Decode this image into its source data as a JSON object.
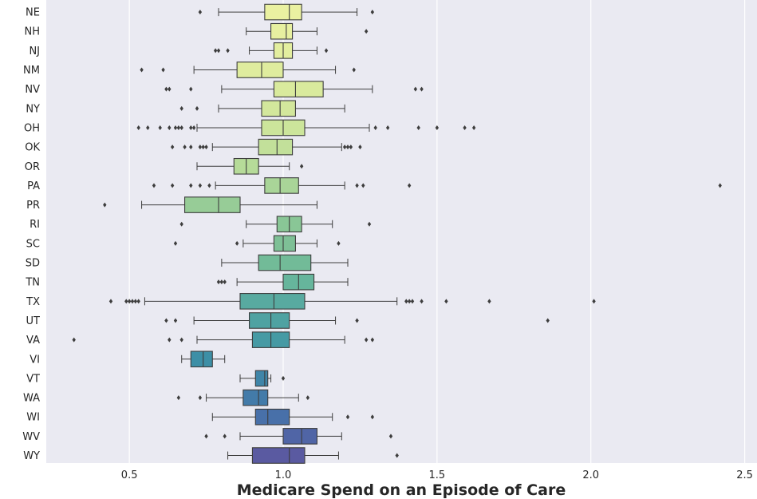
{
  "chart_data": {
    "type": "boxplot",
    "orientation": "horizontal",
    "xlabel": "Medicare Spend on an Episode of Care",
    "ylabel": "",
    "xlim": [
      0.23,
      2.54
    ],
    "xticks": [
      0.5,
      1.0,
      1.5,
      2.0,
      2.5
    ],
    "xtick_labels": [
      "0.5",
      "1.0",
      "1.5",
      "2.0",
      "2.5"
    ],
    "grid": true,
    "background": "#eaeaf2",
    "palette": "viridis-yellow-to-purple",
    "categories": [
      "NE",
      "NH",
      "NJ",
      "NM",
      "NV",
      "NY",
      "OH",
      "OK",
      "OR",
      "PA",
      "PR",
      "RI",
      "SC",
      "SD",
      "TN",
      "TX",
      "UT",
      "VA",
      "VI",
      "VT",
      "WA",
      "WI",
      "WV",
      "WY"
    ],
    "boxes": [
      {
        "state": "NE",
        "whislo": 0.79,
        "q1": 0.94,
        "med": 1.02,
        "q3": 1.06,
        "whishi": 1.24,
        "fliers": [
          0.73,
          1.29
        ],
        "color": "#eaf1a1"
      },
      {
        "state": "NH",
        "whislo": 0.88,
        "q1": 0.96,
        "med": 1.01,
        "q3": 1.03,
        "whishi": 1.11,
        "fliers": [
          1.27
        ],
        "color": "#e7f0a0"
      },
      {
        "state": "NJ",
        "whislo": 0.89,
        "q1": 0.97,
        "med": 1.0,
        "q3": 1.03,
        "whishi": 1.11,
        "fliers": [
          0.78,
          0.79,
          0.82,
          1.14
        ],
        "color": "#e3ee9f"
      },
      {
        "state": "NM",
        "whislo": 0.71,
        "q1": 0.85,
        "med": 0.93,
        "q3": 1.0,
        "whishi": 1.17,
        "fliers": [
          0.54,
          0.61,
          1.23
        ],
        "color": "#dfec9e"
      },
      {
        "state": "NV",
        "whislo": 0.8,
        "q1": 0.97,
        "med": 1.04,
        "q3": 1.13,
        "whishi": 1.29,
        "fliers": [
          0.62,
          0.63,
          0.7,
          1.43,
          1.45
        ],
        "color": "#d9ea9d"
      },
      {
        "state": "NY",
        "whislo": 0.79,
        "q1": 0.93,
        "med": 0.99,
        "q3": 1.04,
        "whishi": 1.2,
        "fliers": [
          0.67,
          0.72
        ],
        "color": "#d3e79c"
      },
      {
        "state": "OH",
        "whislo": 0.72,
        "q1": 0.93,
        "med": 1.0,
        "q3": 1.07,
        "whishi": 1.28,
        "fliers": [
          0.53,
          0.56,
          0.6,
          0.63,
          0.65,
          0.66,
          0.67,
          0.7,
          0.71,
          1.3,
          1.34,
          1.44,
          1.5,
          1.59,
          1.62
        ],
        "color": "#cce59b"
      },
      {
        "state": "OK",
        "whislo": 0.77,
        "q1": 0.92,
        "med": 0.98,
        "q3": 1.03,
        "whishi": 1.19,
        "fliers": [
          0.64,
          0.68,
          0.7,
          0.73,
          0.74,
          0.75,
          1.2,
          1.21,
          1.22,
          1.25
        ],
        "color": "#c2e09a"
      },
      {
        "state": "OR",
        "whislo": 0.72,
        "q1": 0.84,
        "med": 0.88,
        "q3": 0.92,
        "whishi": 1.02,
        "fliers": [
          1.06
        ],
        "color": "#b6db99"
      },
      {
        "state": "PA",
        "whislo": 0.78,
        "q1": 0.94,
        "med": 0.99,
        "q3": 1.05,
        "whishi": 1.2,
        "fliers": [
          0.58,
          0.64,
          0.7,
          0.73,
          0.76,
          1.24,
          1.26,
          1.41,
          2.42
        ],
        "color": "#a9d598"
      },
      {
        "state": "PR",
        "whislo": 0.54,
        "q1": 0.68,
        "med": 0.79,
        "q3": 0.86,
        "whishi": 1.11,
        "fliers": [
          0.42
        ],
        "color": "#97cc97"
      },
      {
        "state": "RI",
        "whislo": 0.88,
        "q1": 0.98,
        "med": 1.02,
        "q3": 1.06,
        "whishi": 1.16,
        "fliers": [
          0.67,
          1.28
        ],
        "color": "#89c696"
      },
      {
        "state": "SC",
        "whislo": 0.87,
        "q1": 0.97,
        "med": 1.0,
        "q3": 1.04,
        "whishi": 1.11,
        "fliers": [
          0.65,
          0.85,
          1.18
        ],
        "color": "#7ec096"
      },
      {
        "state": "SD",
        "whislo": 0.8,
        "q1": 0.92,
        "med": 0.99,
        "q3": 1.09,
        "whishi": 1.21,
        "fliers": [],
        "color": "#72bb98"
      },
      {
        "state": "TN",
        "whislo": 0.85,
        "q1": 1.0,
        "med": 1.05,
        "q3": 1.1,
        "whishi": 1.21,
        "fliers": [
          0.79,
          0.8,
          0.81
        ],
        "color": "#66b59c"
      },
      {
        "state": "TX",
        "whislo": 0.55,
        "q1": 0.86,
        "med": 0.97,
        "q3": 1.07,
        "whishi": 1.37,
        "fliers": [
          0.44,
          0.49,
          0.5,
          0.51,
          0.52,
          0.53,
          1.4,
          1.41,
          1.42,
          1.45,
          1.53,
          1.67,
          2.01
        ],
        "color": "#58aaa0"
      },
      {
        "state": "UT",
        "whislo": 0.71,
        "q1": 0.89,
        "med": 0.96,
        "q3": 1.02,
        "whishi": 1.17,
        "fliers": [
          0.62,
          0.65,
          1.24,
          1.86
        ],
        "color": "#4fa2a2"
      },
      {
        "state": "VA",
        "whislo": 0.72,
        "q1": 0.9,
        "med": 0.96,
        "q3": 1.02,
        "whishi": 1.2,
        "fliers": [
          0.32,
          0.63,
          0.67,
          1.27,
          1.29
        ],
        "color": "#469aa4"
      },
      {
        "state": "VI",
        "whislo": 0.67,
        "q1": 0.7,
        "med": 0.74,
        "q3": 0.77,
        "whishi": 0.81,
        "fliers": [],
        "color": "#3d8fa6"
      },
      {
        "state": "VT",
        "whislo": 0.86,
        "q1": 0.91,
        "med": 0.94,
        "q3": 0.95,
        "whishi": 0.96,
        "fliers": [
          1.0
        ],
        "color": "#3f85a8"
      },
      {
        "state": "WA",
        "whislo": 0.75,
        "q1": 0.87,
        "med": 0.92,
        "q3": 0.95,
        "whishi": 1.05,
        "fliers": [
          0.66,
          0.73,
          1.08
        ],
        "color": "#437ba9"
      },
      {
        "state": "WI",
        "whislo": 0.77,
        "q1": 0.91,
        "med": 0.95,
        "q3": 1.02,
        "whishi": 1.16,
        "fliers": [
          1.21,
          1.29
        ],
        "color": "#4870a9"
      },
      {
        "state": "WV",
        "whislo": 0.86,
        "q1": 1.0,
        "med": 1.06,
        "q3": 1.11,
        "whishi": 1.19,
        "fliers": [
          0.75,
          0.81,
          1.35
        ],
        "color": "#5065a6"
      },
      {
        "state": "WY",
        "whislo": 0.82,
        "q1": 0.9,
        "med": 1.02,
        "q3": 1.07,
        "whishi": 1.18,
        "fliers": [
          1.37
        ],
        "color": "#5a5aa1"
      }
    ]
  }
}
